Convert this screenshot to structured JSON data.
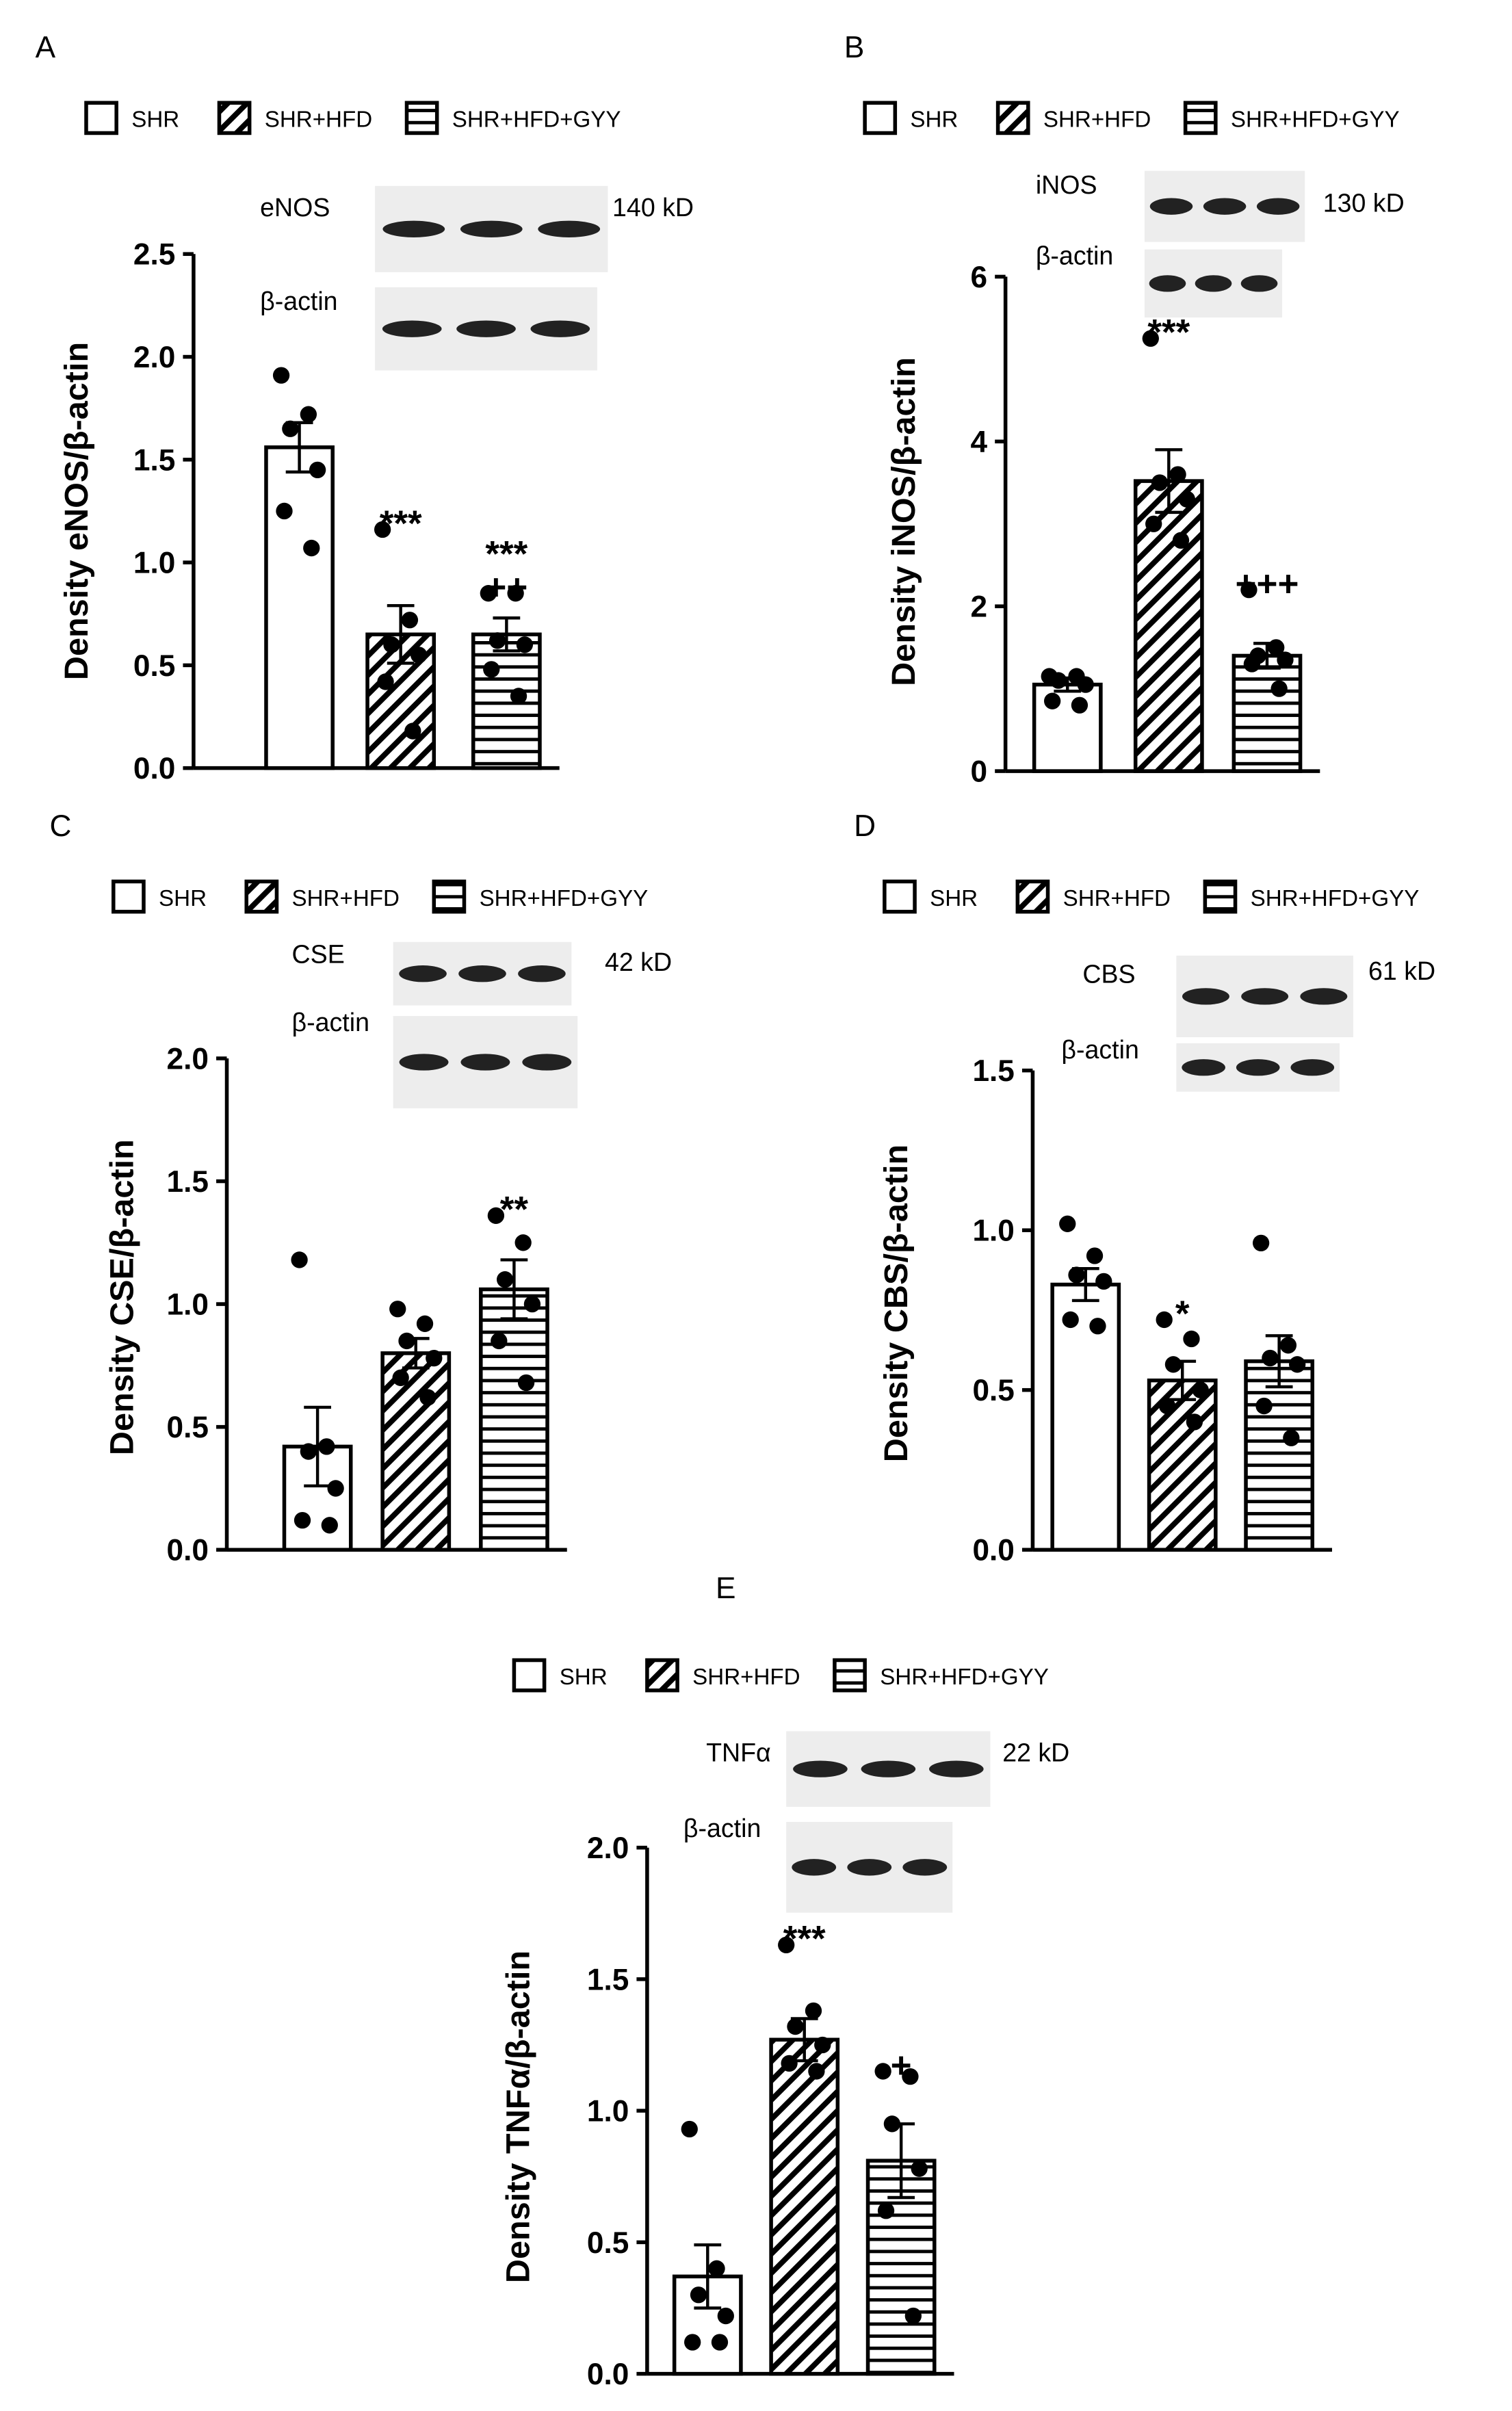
{
  "chart_data": [
    {
      "type": "bar",
      "panel": "A",
      "ylabel": "Density eNOS/β-actin",
      "ylim": [
        0,
        2.5
      ],
      "yticks": [
        {
          "value": 0,
          "label": "0.0"
        },
        0.5,
        {
          "value": 1,
          "label": "1.0"
        },
        1.5,
        {
          "value": 2,
          "label": "2.0"
        },
        2.5
      ],
      "blots": [
        {
          "label": "eNOS",
          "size": "140 kD"
        },
        {
          "label": "β-actin"
        }
      ],
      "series": [
        {
          "name": "SHR",
          "pattern": "open",
          "color": "#000000",
          "values": [
            1.56
          ],
          "errors": [
            0.12
          ],
          "points": [
            1.91,
            1.72,
            1.65,
            1.45,
            1.25,
            1.07
          ],
          "annotations": []
        },
        {
          "name": "SHR+HFD",
          "pattern": "diagonal",
          "color": "#000000",
          "values": [
            0.65
          ],
          "errors": [
            0.14
          ],
          "points": [
            1.16,
            0.72,
            0.6,
            0.55,
            0.42,
            0.18
          ],
          "annotations": [
            "***"
          ]
        },
        {
          "name": "SHR+HFD+GYY",
          "pattern": "horizontal",
          "color": "#000000",
          "values": [
            0.65
          ],
          "errors": [
            0.08
          ],
          "points": [
            0.85,
            0.85,
            0.62,
            0.6,
            0.48,
            0.35
          ],
          "annotations": [
            "***",
            "++"
          ]
        }
      ]
    },
    {
      "type": "bar",
      "panel": "B",
      "ylabel": "Density iNOS/β-actin",
      "ylim": [
        0,
        6
      ],
      "yticks": [
        0,
        2,
        4,
        6
      ],
      "blots": [
        {
          "label": "iNOS",
          "size": "130 kD"
        },
        {
          "label": "β-actin"
        }
      ],
      "series": [
        {
          "name": "SHR",
          "pattern": "open",
          "color": "#000000",
          "values": [
            1.05
          ],
          "errors": [
            0.08
          ],
          "points": [
            1.15,
            1.15,
            1.1,
            1.05,
            0.85,
            0.8
          ],
          "annotations": []
        },
        {
          "name": "SHR+HFD",
          "pattern": "diagonal",
          "color": "#000000",
          "values": [
            3.52
          ],
          "errors": [
            0.38
          ],
          "points": [
            5.25,
            3.6,
            3.5,
            3.3,
            3.0,
            2.8
          ],
          "annotations": [
            "***"
          ]
        },
        {
          "name": "SHR+HFD+GYY",
          "pattern": "horizontal",
          "color": "#000000",
          "values": [
            1.4
          ],
          "errors": [
            0.15
          ],
          "points": [
            2.2,
            1.5,
            1.4,
            1.35,
            1.3,
            1.0
          ],
          "annotations": [
            "+++"
          ]
        }
      ]
    },
    {
      "type": "bar",
      "panel": "C",
      "ylabel": "Density CSE/β-actin",
      "ylim": [
        0,
        2
      ],
      "yticks": [
        {
          "value": 0,
          "label": "0.0"
        },
        0.5,
        {
          "value": 1,
          "label": "1.0"
        },
        1.5,
        {
          "value": 2,
          "label": "2.0"
        }
      ],
      "blots": [
        {
          "label": "CSE",
          "size": "42 kD"
        },
        {
          "label": "β-actin"
        }
      ],
      "series": [
        {
          "name": "SHR",
          "pattern": "open",
          "color": "#000000",
          "values": [
            0.42
          ],
          "errors": [
            0.16
          ],
          "points": [
            1.18,
            0.42,
            0.4,
            0.25,
            0.12,
            0.1
          ],
          "annotations": []
        },
        {
          "name": "SHR+HFD",
          "pattern": "diagonal",
          "color": "#000000",
          "values": [
            0.8
          ],
          "errors": [
            0.06
          ],
          "points": [
            0.98,
            0.92,
            0.85,
            0.78,
            0.7,
            0.62
          ],
          "annotations": []
        },
        {
          "name": "SHR+HFD+GYY",
          "pattern": "horizontal",
          "color": "#000000",
          "values": [
            1.06
          ],
          "errors": [
            0.12
          ],
          "points": [
            1.36,
            1.25,
            1.1,
            1.0,
            0.85,
            0.68
          ],
          "annotations": [
            "**"
          ]
        }
      ]
    },
    {
      "type": "bar",
      "panel": "D",
      "ylabel": "Density CBS/β-actin",
      "ylim": [
        0,
        1.5
      ],
      "yticks": [
        {
          "value": 0,
          "label": "0.0"
        },
        0.5,
        {
          "value": 1,
          "label": "1.0"
        },
        1.5
      ],
      "blots": [
        {
          "label": "CBS",
          "size": "61 kD"
        },
        {
          "label": "β-actin"
        }
      ],
      "series": [
        {
          "name": "SHR",
          "pattern": "open",
          "color": "#000000",
          "values": [
            0.83
          ],
          "errors": [
            0.05
          ],
          "points": [
            1.02,
            0.92,
            0.86,
            0.84,
            0.72,
            0.7
          ],
          "annotations": []
        },
        {
          "name": "SHR+HFD",
          "pattern": "diagonal",
          "color": "#000000",
          "values": [
            0.53
          ],
          "errors": [
            0.06
          ],
          "points": [
            0.72,
            0.66,
            0.58,
            0.5,
            0.45,
            0.4
          ],
          "annotations": [
            "*"
          ]
        },
        {
          "name": "SHR+HFD+GYY",
          "pattern": "horizontal",
          "color": "#000000",
          "values": [
            0.59
          ],
          "errors": [
            0.08
          ],
          "points": [
            0.96,
            0.64,
            0.6,
            0.58,
            0.45,
            0.35
          ],
          "annotations": []
        }
      ]
    },
    {
      "type": "bar",
      "panel": "E",
      "ylabel": "Density TNFα/β-actin",
      "ylim": [
        0,
        2
      ],
      "yticks": [
        {
          "value": 0,
          "label": "0.0"
        },
        0.5,
        {
          "value": 1,
          "label": "1.0"
        },
        1.5,
        {
          "value": 2,
          "label": "2.0"
        }
      ],
      "blots": [
        {
          "label": "TNFα",
          "size": "22 kD"
        },
        {
          "label": "β-actin"
        }
      ],
      "series": [
        {
          "name": "SHR",
          "pattern": "open",
          "color": "#000000",
          "values": [
            0.37
          ],
          "errors": [
            0.12
          ],
          "points": [
            0.93,
            0.4,
            0.3,
            0.22,
            0.12,
            0.12
          ],
          "annotations": []
        },
        {
          "name": "SHR+HFD",
          "pattern": "diagonal",
          "color": "#000000",
          "values": [
            1.27
          ],
          "errors": [
            0.08
          ],
          "points": [
            1.63,
            1.38,
            1.32,
            1.25,
            1.18,
            1.15
          ],
          "annotations": [
            "***"
          ]
        },
        {
          "name": "SHR+HFD+GYY",
          "pattern": "horizontal",
          "color": "#000000",
          "values": [
            0.81
          ],
          "errors": [
            0.14
          ],
          "points": [
            1.15,
            1.13,
            0.95,
            0.78,
            0.62,
            0.22
          ],
          "annotations": [
            "+"
          ]
        }
      ]
    }
  ]
}
